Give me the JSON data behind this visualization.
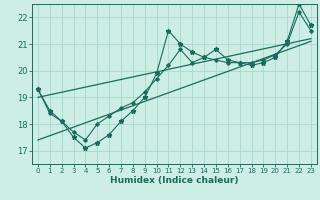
{
  "title": "",
  "xlabel": "Humidex (Indice chaleur)",
  "bg_color": "#cceee4",
  "grid_color": "#aad8cc",
  "line_color": "#1a6b5e",
  "xlim": [
    -0.5,
    23.5
  ],
  "ylim": [
    16.5,
    22.5
  ],
  "yticks": [
    17,
    18,
    19,
    20,
    21,
    22
  ],
  "xticks": [
    0,
    1,
    2,
    3,
    4,
    5,
    6,
    7,
    8,
    9,
    10,
    11,
    12,
    13,
    14,
    15,
    16,
    17,
    18,
    19,
    20,
    21,
    22,
    23
  ],
  "series1": [
    19.3,
    18.5,
    18.1,
    17.5,
    17.1,
    17.3,
    17.6,
    18.1,
    18.5,
    19.0,
    19.9,
    21.5,
    21.0,
    20.7,
    20.5,
    20.8,
    20.4,
    20.3,
    20.2,
    20.3,
    20.5,
    21.1,
    22.5,
    21.7
  ],
  "series2": [
    19.3,
    18.4,
    18.1,
    17.7,
    17.4,
    18.0,
    18.3,
    18.6,
    18.8,
    19.2,
    19.7,
    20.2,
    20.8,
    20.3,
    20.5,
    20.4,
    20.3,
    20.3,
    20.3,
    20.4,
    20.6,
    21.0,
    22.2,
    21.5
  ],
  "trend1_x": [
    0,
    23
  ],
  "trend1_y": [
    19.0,
    21.2
  ],
  "trend2_x": [
    0,
    23
  ],
  "trend2_y": [
    17.4,
    21.1
  ]
}
